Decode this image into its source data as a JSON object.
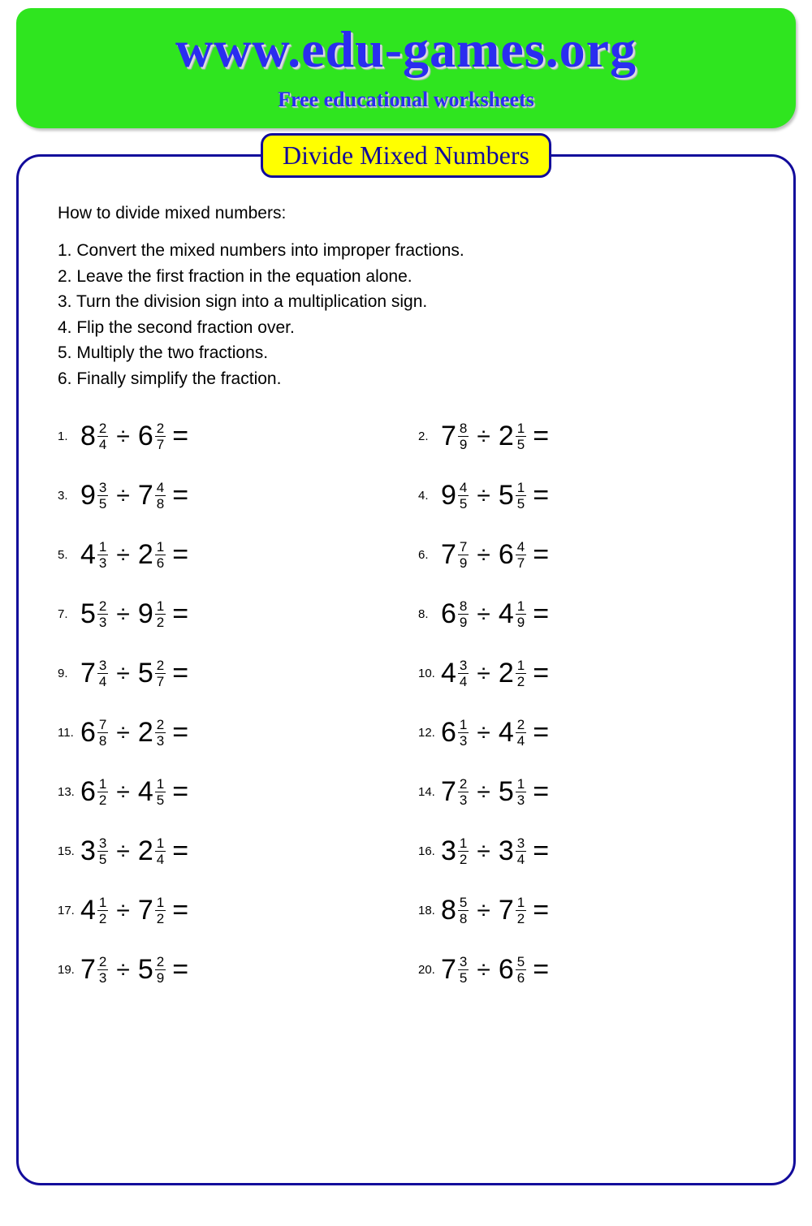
{
  "header": {
    "site": "www.edu-games.org",
    "tagline": "Free educational worksheets",
    "bg_color": "#2fe51f",
    "text_color": "#2a2df0"
  },
  "worksheet": {
    "title": "Divide Mixed Numbers",
    "title_bg": "#ffff00",
    "border_color": "#120b9b",
    "intro_heading": "How to divide mixed numbers:",
    "steps": [
      "1. Convert the mixed numbers into improper fractions.",
      "2. Leave the first fraction in the equation alone.",
      "3. Turn the division sign into a multiplication sign.",
      "4. Flip the second fraction over.",
      "5. Multiply the two fractions.",
      "6. Finally simplify the fraction."
    ],
    "operator": "÷",
    "equals": "=",
    "problems": [
      {
        "n": 1,
        "a": {
          "w": 8,
          "num": 2,
          "den": 4
        },
        "b": {
          "w": 6,
          "num": 2,
          "den": 7
        }
      },
      {
        "n": 2,
        "a": {
          "w": 7,
          "num": 8,
          "den": 9
        },
        "b": {
          "w": 2,
          "num": 1,
          "den": 5
        }
      },
      {
        "n": 3,
        "a": {
          "w": 9,
          "num": 3,
          "den": 5
        },
        "b": {
          "w": 7,
          "num": 4,
          "den": 8
        }
      },
      {
        "n": 4,
        "a": {
          "w": 9,
          "num": 4,
          "den": 5
        },
        "b": {
          "w": 5,
          "num": 1,
          "den": 5
        }
      },
      {
        "n": 5,
        "a": {
          "w": 4,
          "num": 1,
          "den": 3
        },
        "b": {
          "w": 2,
          "num": 1,
          "den": 6
        }
      },
      {
        "n": 6,
        "a": {
          "w": 7,
          "num": 7,
          "den": 9
        },
        "b": {
          "w": 6,
          "num": 4,
          "den": 7
        }
      },
      {
        "n": 7,
        "a": {
          "w": 5,
          "num": 2,
          "den": 3
        },
        "b": {
          "w": 9,
          "num": 1,
          "den": 2
        }
      },
      {
        "n": 8,
        "a": {
          "w": 6,
          "num": 8,
          "den": 9
        },
        "b": {
          "w": 4,
          "num": 1,
          "den": 9
        }
      },
      {
        "n": 9,
        "a": {
          "w": 7,
          "num": 3,
          "den": 4
        },
        "b": {
          "w": 5,
          "num": 2,
          "den": 7
        }
      },
      {
        "n": 10,
        "a": {
          "w": 4,
          "num": 3,
          "den": 4
        },
        "b": {
          "w": 2,
          "num": 1,
          "den": 2
        }
      },
      {
        "n": 11,
        "a": {
          "w": 6,
          "num": 7,
          "den": 8
        },
        "b": {
          "w": 2,
          "num": 2,
          "den": 3
        }
      },
      {
        "n": 12,
        "a": {
          "w": 6,
          "num": 1,
          "den": 3
        },
        "b": {
          "w": 4,
          "num": 2,
          "den": 4
        }
      },
      {
        "n": 13,
        "a": {
          "w": 6,
          "num": 1,
          "den": 2
        },
        "b": {
          "w": 4,
          "num": 1,
          "den": 5
        }
      },
      {
        "n": 14,
        "a": {
          "w": 7,
          "num": 2,
          "den": 3
        },
        "b": {
          "w": 5,
          "num": 1,
          "den": 3
        }
      },
      {
        "n": 15,
        "a": {
          "w": 3,
          "num": 3,
          "den": 5
        },
        "b": {
          "w": 2,
          "num": 1,
          "den": 4
        }
      },
      {
        "n": 16,
        "a": {
          "w": 3,
          "num": 1,
          "den": 2
        },
        "b": {
          "w": 3,
          "num": 3,
          "den": 4
        }
      },
      {
        "n": 17,
        "a": {
          "w": 4,
          "num": 1,
          "den": 2
        },
        "b": {
          "w": 7,
          "num": 1,
          "den": 2
        }
      },
      {
        "n": 18,
        "a": {
          "w": 8,
          "num": 5,
          "den": 8
        },
        "b": {
          "w": 7,
          "num": 1,
          "den": 2
        }
      },
      {
        "n": 19,
        "a": {
          "w": 7,
          "num": 2,
          "den": 3
        },
        "b": {
          "w": 5,
          "num": 2,
          "den": 9
        }
      },
      {
        "n": 20,
        "a": {
          "w": 7,
          "num": 3,
          "den": 5
        },
        "b": {
          "w": 6,
          "num": 5,
          "den": 6
        }
      }
    ]
  }
}
